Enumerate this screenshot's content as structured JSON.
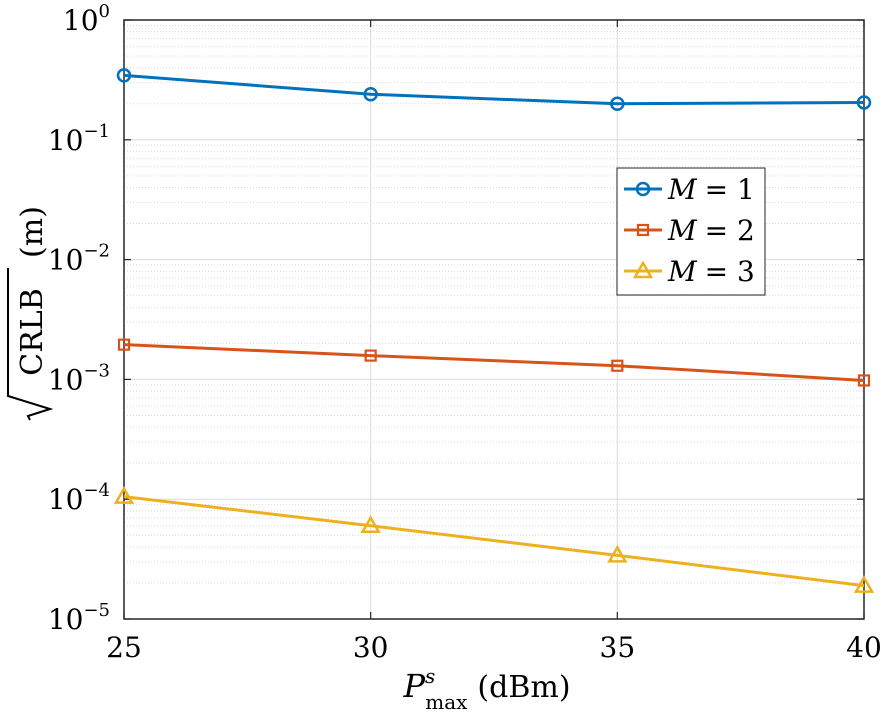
{
  "chart_data": {
    "type": "line",
    "title": "",
    "x": [
      25,
      30,
      35,
      40
    ],
    "xlim": [
      25,
      40
    ],
    "ylim": [
      1e-05,
      1
    ],
    "yscale": "log",
    "grid": true,
    "xlabel": {
      "main": "P",
      "sup": "s",
      "sub": "max",
      "unit": "(dBm)"
    },
    "ylabel": {
      "radicand": "CRLB",
      "unit": "(m)"
    },
    "x_ticks": [
      "25",
      "30",
      "35",
      "40"
    ],
    "y_ticks": [
      {
        "base": "10",
        "exp": "0"
      },
      {
        "base": "10",
        "exp": "−1"
      },
      {
        "base": "10",
        "exp": "−2"
      },
      {
        "base": "10",
        "exp": "−3"
      },
      {
        "base": "10",
        "exp": "−4"
      },
      {
        "base": "10",
        "exp": "−5"
      }
    ],
    "legend_position": "right",
    "series": [
      {
        "name": "M = 1",
        "var": "M",
        "rhs": "= 1",
        "color": "#0072BD",
        "marker": "circle",
        "values": [
          0.345,
          0.24,
          0.2,
          0.205
        ]
      },
      {
        "name": "M = 2",
        "var": "M",
        "rhs": "= 2",
        "color": "#D95319",
        "marker": "square",
        "values": [
          0.00195,
          0.00158,
          0.0013,
          0.00098
        ]
      },
      {
        "name": "M = 3",
        "var": "M",
        "rhs": "= 3",
        "color": "#EDB120",
        "marker": "triangle",
        "values": [
          0.000105,
          6e-05,
          3.4e-05,
          1.9e-05
        ]
      }
    ]
  }
}
